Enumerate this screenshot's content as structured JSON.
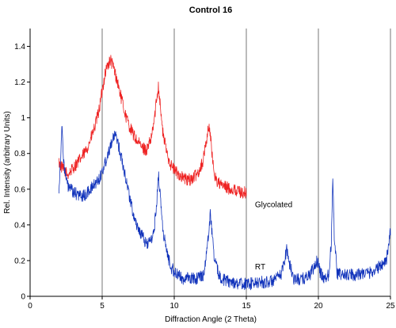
{
  "chart_data": {
    "type": "line",
    "title": "Control 16",
    "xlabel": "Diffraction Angle (2 Theta)",
    "ylabel": "Rel. Intensity (arbitrary Units)",
    "xlim": [
      0,
      25
    ],
    "ylim": [
      0,
      1.5
    ],
    "xticks": [
      0,
      5,
      10,
      15,
      20,
      25
    ],
    "yticks": [
      0,
      0.2,
      0.4,
      0.6,
      0.8,
      1,
      1.2,
      1.4
    ],
    "grid": "vertical",
    "annotations": [
      {
        "text": "Glycolated",
        "x": 15.6,
        "y": 0.5
      },
      {
        "text": "RT",
        "x": 15.6,
        "y": 0.15
      }
    ],
    "series": [
      {
        "color": "#ee2222",
        "x": [
          2.0,
          2.2,
          2.4,
          2.6,
          2.8,
          3.0,
          3.3,
          3.6,
          3.9,
          4.2,
          4.5,
          4.8,
          5.0,
          5.2,
          5.4,
          5.6,
          5.8,
          6.0,
          6.3,
          6.6,
          6.9,
          7.2,
          7.5,
          7.8,
          8.1,
          8.4,
          8.6,
          8.8,
          8.9,
          9.0,
          9.2,
          9.5,
          9.8,
          10.1,
          10.5,
          10.9,
          11.3,
          11.7,
          12.0,
          12.2,
          12.4,
          12.5,
          12.6,
          12.8,
          13.0,
          13.3,
          13.6,
          14.0,
          14.4,
          14.8,
          15.0
        ],
        "y": [
          0.75,
          0.72,
          0.7,
          0.68,
          0.7,
          0.72,
          0.75,
          0.78,
          0.82,
          0.88,
          0.95,
          1.05,
          1.15,
          1.25,
          1.3,
          1.32,
          1.28,
          1.22,
          1.12,
          1.02,
          0.95,
          0.9,
          0.86,
          0.83,
          0.82,
          0.88,
          0.98,
          1.12,
          1.18,
          1.1,
          0.92,
          0.8,
          0.73,
          0.7,
          0.67,
          0.65,
          0.66,
          0.7,
          0.76,
          0.86,
          0.95,
          0.92,
          0.8,
          0.68,
          0.64,
          0.62,
          0.61,
          0.6,
          0.59,
          0.58,
          0.58
        ]
      },
      {
        "color": "#1133bb",
        "x": [
          2.0,
          2.1,
          2.2,
          2.3,
          2.4,
          2.6,
          2.8,
          3.0,
          3.3,
          3.6,
          3.9,
          4.2,
          4.5,
          4.8,
          5.1,
          5.4,
          5.7,
          6.0,
          6.2,
          6.5,
          6.8,
          7.1,
          7.4,
          7.7,
          8.0,
          8.3,
          8.6,
          8.8,
          8.9,
          9.0,
          9.2,
          9.5,
          9.8,
          10.2,
          10.6,
          11.0,
          11.5,
          12.0,
          12.2,
          12.4,
          12.5,
          12.6,
          12.8,
          13.1,
          13.5,
          14.0,
          14.5,
          15.0,
          15.5,
          16.0,
          16.5,
          17.0,
          17.4,
          17.6,
          17.8,
          18.0,
          18.3,
          18.7,
          19.0,
          19.4,
          19.7,
          19.9,
          20.1,
          20.4,
          20.7,
          20.9,
          21.0,
          21.1,
          21.3,
          21.6,
          22.0,
          22.5,
          23.0,
          23.5,
          24.0,
          24.4,
          24.7,
          24.9,
          25.0
        ],
        "y": [
          0.6,
          0.75,
          0.95,
          0.8,
          0.7,
          0.62,
          0.6,
          0.58,
          0.57,
          0.56,
          0.57,
          0.6,
          0.63,
          0.66,
          0.72,
          0.8,
          0.88,
          0.9,
          0.82,
          0.72,
          0.6,
          0.48,
          0.4,
          0.35,
          0.3,
          0.3,
          0.36,
          0.55,
          0.68,
          0.6,
          0.38,
          0.24,
          0.16,
          0.12,
          0.1,
          0.1,
          0.1,
          0.12,
          0.2,
          0.38,
          0.46,
          0.38,
          0.2,
          0.12,
          0.09,
          0.08,
          0.07,
          0.07,
          0.07,
          0.08,
          0.08,
          0.09,
          0.12,
          0.18,
          0.27,
          0.18,
          0.1,
          0.09,
          0.1,
          0.12,
          0.16,
          0.2,
          0.14,
          0.1,
          0.12,
          0.3,
          0.68,
          0.35,
          0.13,
          0.12,
          0.12,
          0.12,
          0.13,
          0.13,
          0.15,
          0.18,
          0.2,
          0.3,
          0.36
        ]
      }
    ]
  }
}
